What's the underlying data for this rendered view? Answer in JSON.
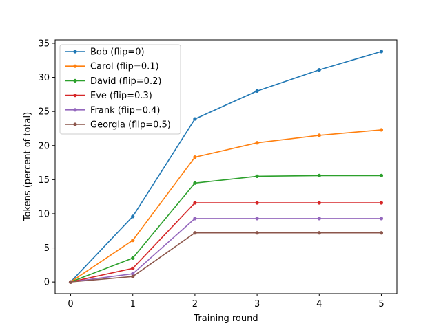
{
  "chart_data": {
    "type": "line",
    "title": "",
    "xlabel": "Training round",
    "ylabel": "Tokens (percent of total)",
    "x": [
      0,
      1,
      2,
      3,
      4,
      5
    ],
    "xlim": [
      -0.25,
      5.25
    ],
    "ylim": [
      -1.7,
      35.5
    ],
    "xticks": [
      0,
      1,
      2,
      3,
      4,
      5
    ],
    "yticks": [
      0,
      5,
      10,
      15,
      20,
      25,
      30,
      35
    ],
    "grid": false,
    "legend_position": "top-left",
    "series": [
      {
        "name": "Bob (flip=0)",
        "color": "#1f77b4",
        "values": [
          0.0,
          9.6,
          23.9,
          28.0,
          31.1,
          33.8
        ]
      },
      {
        "name": "Carol (flip=0.1)",
        "color": "#ff7f0e",
        "values": [
          0.0,
          6.1,
          18.3,
          20.4,
          21.5,
          22.3
        ]
      },
      {
        "name": "David (flip=0.2)",
        "color": "#2ca02c",
        "values": [
          0.0,
          3.5,
          14.5,
          15.5,
          15.6,
          15.6
        ]
      },
      {
        "name": "Eve (flip=0.3)",
        "color": "#d62728",
        "values": [
          0.0,
          2.0,
          11.6,
          11.6,
          11.6,
          11.6
        ]
      },
      {
        "name": "Frank (flip=0.4)",
        "color": "#9467bd",
        "values": [
          0.0,
          1.2,
          9.3,
          9.3,
          9.3,
          9.3
        ]
      },
      {
        "name": "Georgia (flip=0.5)",
        "color": "#8c564b",
        "values": [
          0.0,
          0.8,
          7.2,
          7.2,
          7.2,
          7.2
        ]
      }
    ]
  }
}
